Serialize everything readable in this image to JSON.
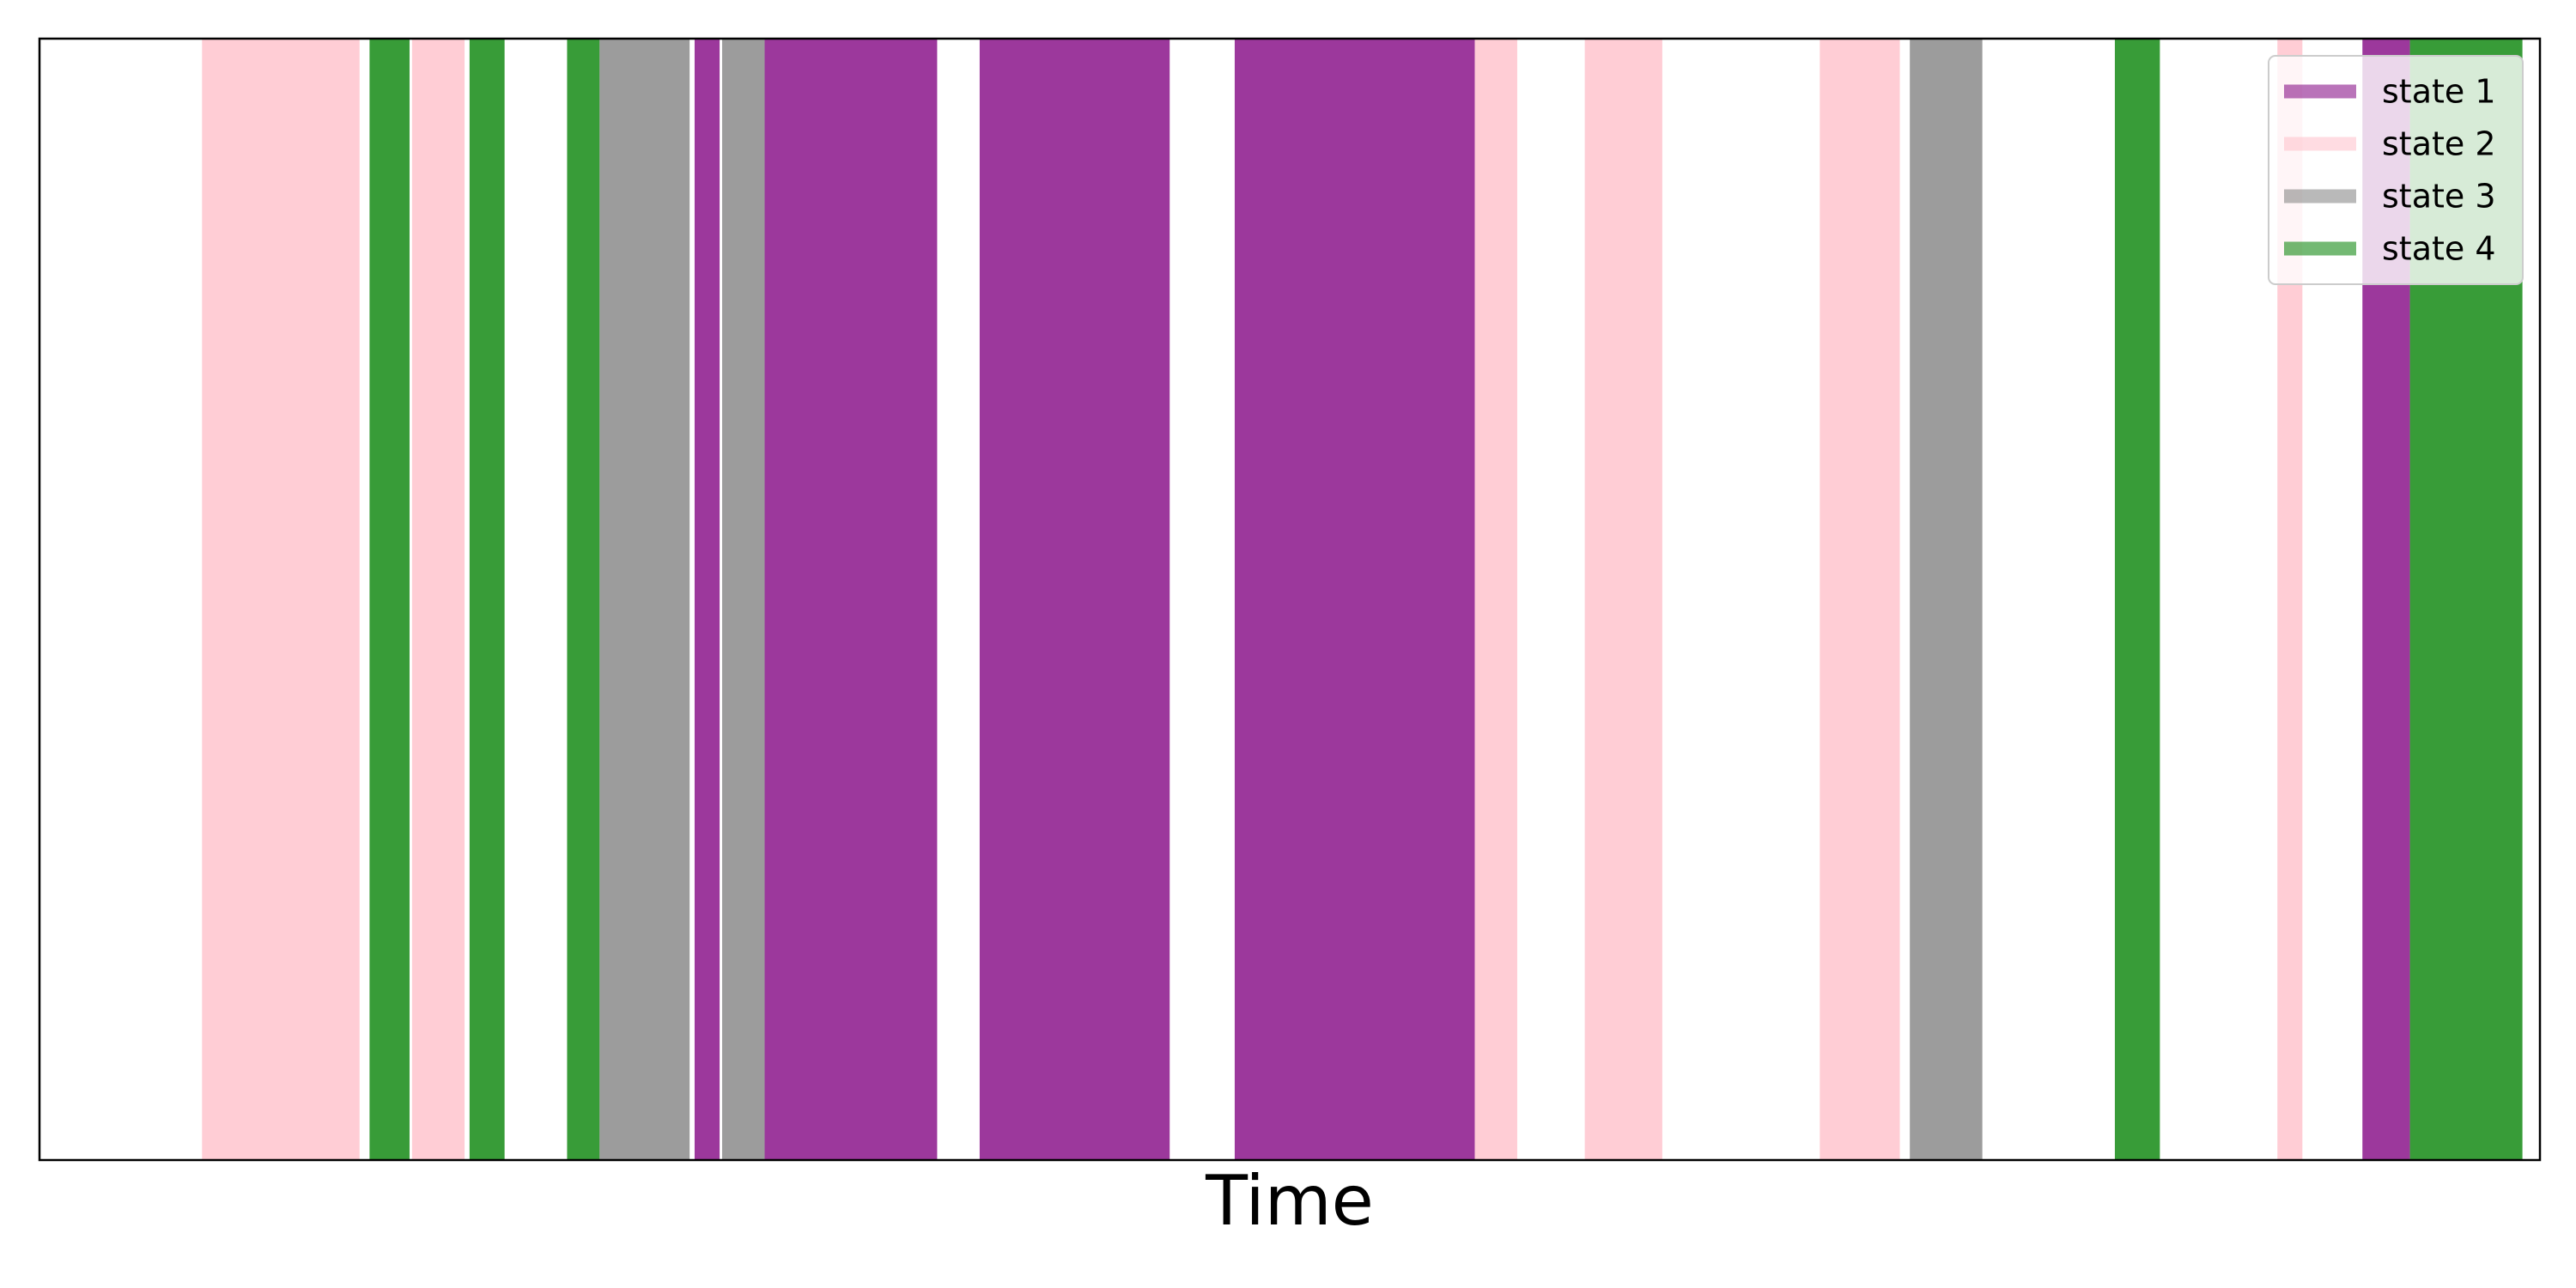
{
  "chart_data": {
    "type": "area",
    "title": "",
    "xlabel": "Time",
    "ylabel": "",
    "xlim": [
      0,
      1000
    ],
    "grid": false,
    "legend": {
      "location": "top-right",
      "entries": [
        "state 1",
        "state 2",
        "state 3",
        "state 4"
      ]
    },
    "series": [
      {
        "name": "state 1",
        "color": "#800080"
      },
      {
        "name": "state 2",
        "color": "#FFC0CB"
      },
      {
        "name": "state 3",
        "color": "#808080"
      },
      {
        "name": "state 4",
        "color": "#008000"
      }
    ],
    "segments": [
      {
        "state": "state 2",
        "start": 65,
        "end": 128
      },
      {
        "state": "state 4",
        "start": 132,
        "end": 148
      },
      {
        "state": "state 2",
        "start": 149,
        "end": 170
      },
      {
        "state": "state 4",
        "start": 172,
        "end": 186
      },
      {
        "state": "state 4",
        "start": 211,
        "end": 224
      },
      {
        "state": "state 3",
        "start": 224,
        "end": 260
      },
      {
        "state": "state 1",
        "start": 262,
        "end": 272
      },
      {
        "state": "state 3",
        "start": 273,
        "end": 290
      },
      {
        "state": "state 1",
        "start": 290,
        "end": 359
      },
      {
        "state": "state 1",
        "start": 376,
        "end": 452
      },
      {
        "state": "state 1",
        "start": 478,
        "end": 574
      },
      {
        "state": "state 2",
        "start": 574,
        "end": 591
      },
      {
        "state": "state 2",
        "start": 618,
        "end": 649
      },
      {
        "state": "state 2",
        "start": 712,
        "end": 744
      },
      {
        "state": "state 3",
        "start": 748,
        "end": 777
      },
      {
        "state": "state 4",
        "start": 830,
        "end": 848
      },
      {
        "state": "state 2",
        "start": 895,
        "end": 905
      },
      {
        "state": "state 1",
        "start": 929,
        "end": 948
      },
      {
        "state": "state 4",
        "start": 948,
        "end": 993
      }
    ]
  }
}
